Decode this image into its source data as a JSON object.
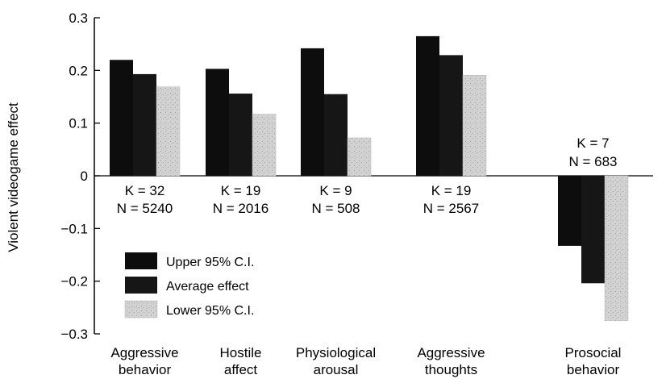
{
  "chart_data": {
    "type": "bar",
    "title": "",
    "xlabel": "",
    "ylabel": "Violent videogame effect",
    "ylim": [
      -0.3,
      0.3
    ],
    "yticks": [
      0.3,
      0.2,
      0.1,
      0,
      -0.1,
      -0.2,
      -0.3
    ],
    "ytick_labels": [
      "0.3",
      "0.2",
      "0.1",
      "0",
      "−0.1",
      "−0.2",
      "−0.3"
    ],
    "categories": [
      [
        "Aggressive",
        "behavior"
      ],
      [
        "Hostile",
        "affect"
      ],
      [
        "Physiological",
        "arousal"
      ],
      [
        "Aggressive",
        "thoughts"
      ],
      [
        "Prosocial",
        "behavior"
      ]
    ],
    "series": [
      {
        "name": "Upper 95% C.I.",
        "values": [
          0.22,
          0.203,
          0.242,
          0.265,
          -0.133
        ],
        "color": "#0d0d0d"
      },
      {
        "name": "Average effect",
        "values": [
          0.193,
          0.156,
          0.155,
          0.229,
          -0.204
        ],
        "color": "#161616"
      },
      {
        "name": "Lower 95% C.I.",
        "values": [
          0.169,
          0.117,
          0.072,
          0.191,
          -0.275
        ],
        "color": "#cfcfcf"
      }
    ],
    "annotations": [
      {
        "k": "K = 32",
        "n": "N = 5240"
      },
      {
        "k": "K = 19",
        "n": "N = 2016"
      },
      {
        "k": "K = 9",
        "n": "N = 508"
      },
      {
        "k": "K = 19",
        "n": "N = 2567"
      },
      {
        "k": "K = 7",
        "n": "N = 683"
      }
    ],
    "legend": {
      "placement": "bottom-left"
    },
    "grid": false
  }
}
